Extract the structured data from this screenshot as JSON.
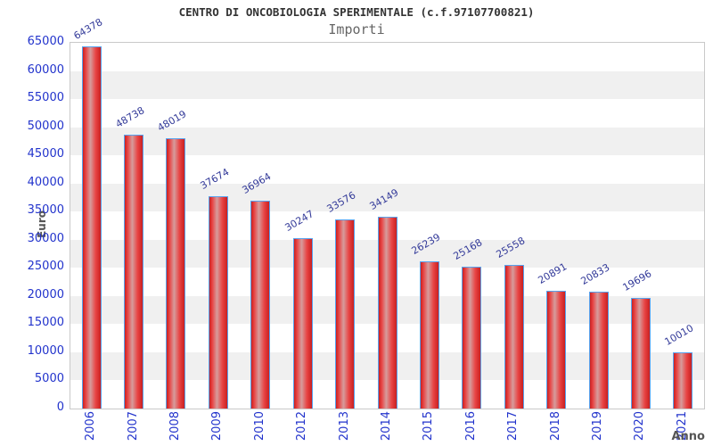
{
  "chart_data": {
    "type": "bar",
    "title": "CENTRO DI ONCOBIOLOGIA SPERIMENTALE (c.f.97107700821)",
    "subtitle": "Importi",
    "xlabel": "Anno",
    "ylabel": "Euro",
    "categories": [
      "2006",
      "2007",
      "2008",
      "2009",
      "2010",
      "2012",
      "2013",
      "2014",
      "2015",
      "2016",
      "2017",
      "2018",
      "2019",
      "2020",
      "2021"
    ],
    "values": [
      64378,
      48738,
      48019,
      37674,
      36964,
      30247,
      33576,
      34149,
      26239,
      25168,
      25558,
      20891,
      20833,
      19696,
      10010
    ],
    "ylim": [
      0,
      65000
    ],
    "ytick_step": 5000,
    "grid": "alternating-bands",
    "legend": "none",
    "colors": {
      "title_text": "#333333",
      "subtitle_text": "#666666",
      "tick_text": "#2233cc",
      "value_text": "#333a99",
      "axis_title_text": "#555555",
      "plot_border": "#c9c9c9",
      "band_gray": "#f0f0f0",
      "bar_edge": "#c92020",
      "bar_bright": "#e84444",
      "bar_highlight": "#d69c9c",
      "bar_border": "#57a2ee"
    }
  }
}
